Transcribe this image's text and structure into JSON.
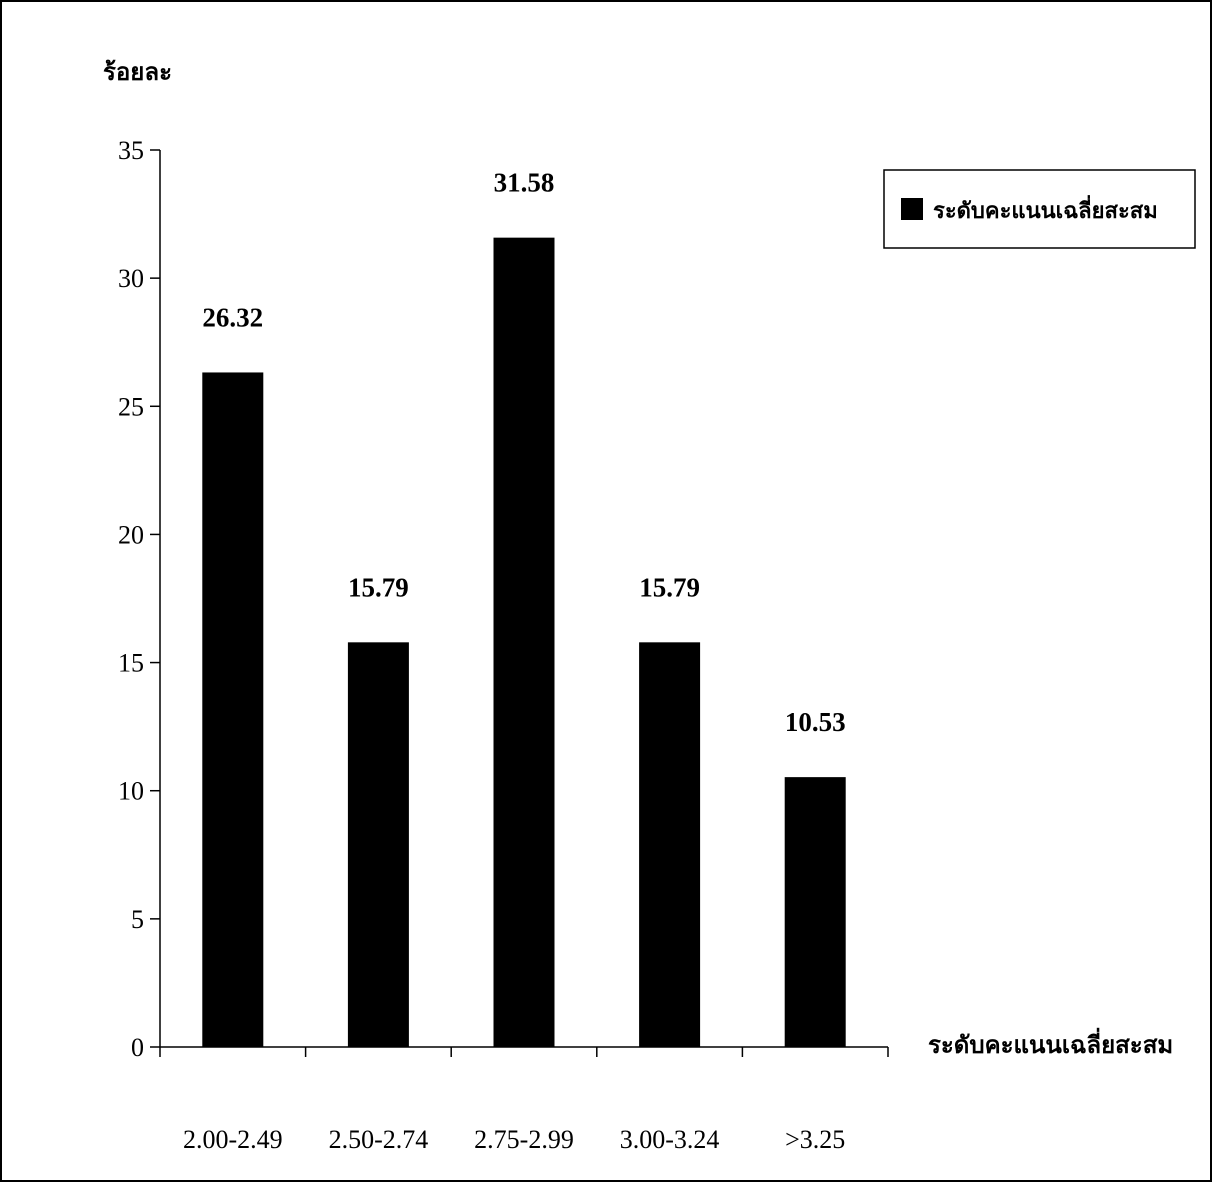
{
  "chart_data": {
    "type": "bar",
    "title": "",
    "ylabel": "ร้อยละ",
    "xlabel": "ระดับคะแนนเฉลี่ยสะสม",
    "categories": [
      "2.00-2.49",
      "2.50-2.74",
      "2.75-2.99",
      "3.00-3.24",
      ">3.25"
    ],
    "series": [
      {
        "name": "ระดับคะแนนเฉลี่ยสะสม",
        "values": [
          26.32,
          15.79,
          31.58,
          15.79,
          10.53
        ],
        "color": "#000000"
      }
    ],
    "data_labels": [
      "26.32",
      "15.79",
      "31.58",
      "15.79",
      "10.53"
    ],
    "ylim": [
      0,
      35
    ],
    "yticks": [
      0,
      5,
      10,
      15,
      20,
      25,
      30,
      35
    ],
    "grid": false,
    "legend_position": "top-right"
  }
}
